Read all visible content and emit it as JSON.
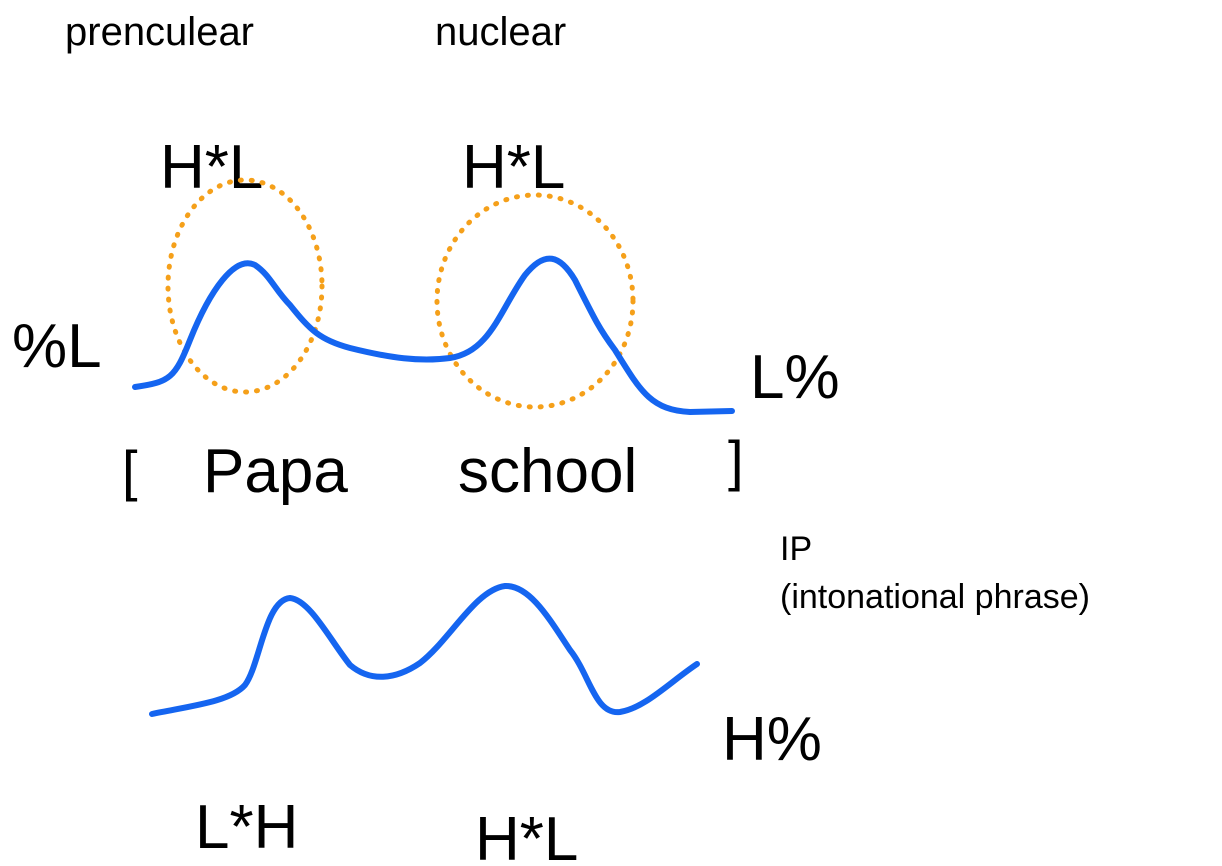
{
  "labels": {
    "prenuclear": "prenculear",
    "nuclear": "nuclear",
    "accent1": "H*L",
    "accent2": "H*L",
    "initial_boundary": "%L",
    "final_boundary": "L%",
    "open_bracket": "[",
    "word1": "Papa",
    "word2": "school",
    "close_bracket": "]",
    "ip": "IP",
    "ip_full": "(intonational phrase)",
    "final_boundary2": "H%",
    "accent3": "L*H",
    "accent4": "H*L"
  }
}
